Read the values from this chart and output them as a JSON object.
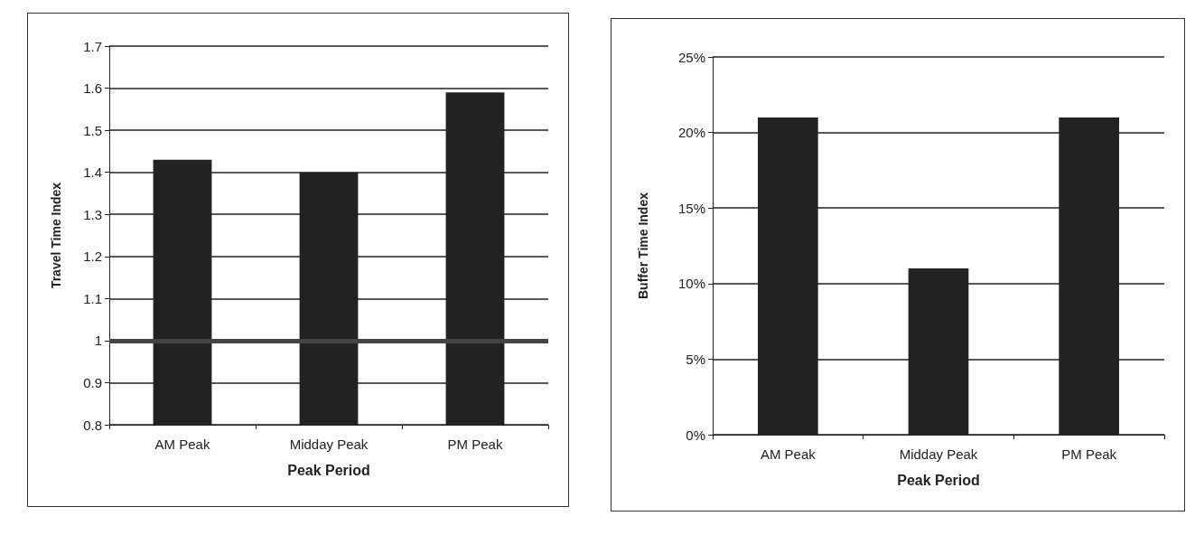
{
  "chart_data": [
    {
      "type": "bar",
      "xlabel": "Peak Period",
      "ylabel": "Travel Time Index",
      "categories": [
        "AM Peak",
        "Midday Peak",
        "PM Peak"
      ],
      "values": [
        1.43,
        1.4,
        1.59
      ],
      "color": "#222222",
      "ylim": [
        0.8,
        1.7
      ],
      "yticks": [
        0.8,
        0.9,
        1,
        1.1,
        1.2,
        1.3,
        1.4,
        1.5,
        1.6,
        1.7
      ],
      "grid": "y",
      "ref_lines": [
        {
          "axis": "y",
          "value": 1,
          "color": "#444444"
        }
      ]
    },
    {
      "type": "bar",
      "xlabel": "Peak Period",
      "ylabel": "Buffer Time Index",
      "categories": [
        "AM Peak",
        "Midday Peak",
        "PM Peak"
      ],
      "values": [
        21,
        11,
        21
      ],
      "color": "#222222",
      "ylim": [
        0,
        25
      ],
      "yticks": [
        {
          "value": 0,
          "label": "0%"
        },
        {
          "value": 5,
          "label": "5%"
        },
        {
          "value": 10,
          "label": "10%"
        },
        {
          "value": 15,
          "label": "15%"
        },
        {
          "value": 20,
          "label": "20%"
        },
        {
          "value": 25,
          "label": "25%"
        }
      ],
      "grid": "y"
    }
  ]
}
